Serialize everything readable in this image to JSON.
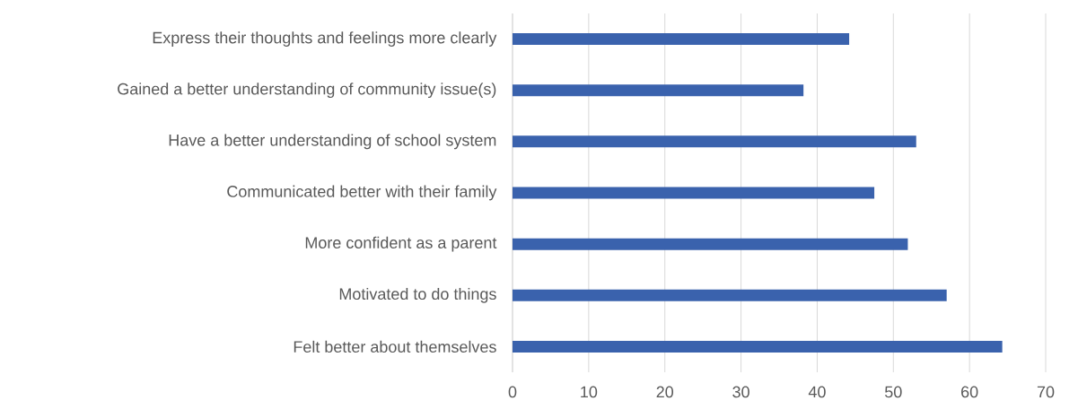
{
  "chart_data": {
    "type": "bar",
    "orientation": "horizontal",
    "categories": [
      "Express their thoughts and feelings more clearly",
      "Gained a better understanding of community issue(s)",
      "Have a better understanding of school system",
      "Communicated better with their family",
      "More confident as a parent",
      "Motivated to do things",
      "Felt better about themselves"
    ],
    "values": [
      44.2,
      38.2,
      53.0,
      47.5,
      51.9,
      57.0,
      64.3
    ],
    "color": "#3a62ad",
    "xlim": [
      0,
      70
    ],
    "xticks": [
      0,
      10,
      20,
      30,
      40,
      50,
      60,
      70
    ],
    "grid": "x"
  }
}
